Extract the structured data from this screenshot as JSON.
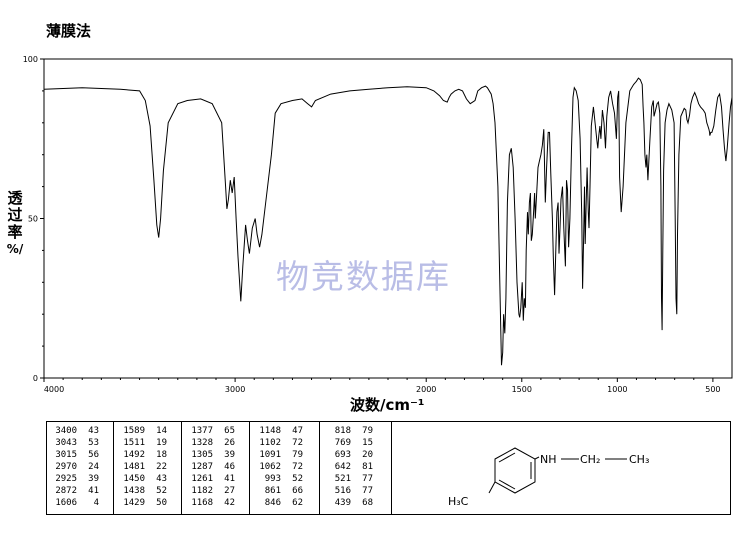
{
  "method_label": "薄膜法",
  "watermark": "物竞数据库",
  "chart_data": {
    "type": "line",
    "title": "",
    "ylabel_chars": [
      "透",
      "过",
      "率"
    ],
    "ylabel_unit": "%/",
    "xlabel": "波数/cm⁻¹",
    "xlim": [
      4000,
      400
    ],
    "ylim": [
      0,
      100
    ],
    "x_ticks": [
      4000,
      3000,
      2000,
      1500,
      1000,
      500
    ],
    "y_ticks": [
      0,
      50,
      100
    ],
    "grid": false,
    "series": [
      {
        "color": "#000000",
        "x": [
          4000,
          3800,
          3600,
          3500,
          3470,
          3445,
          3425,
          3410,
          3400,
          3390,
          3375,
          3350,
          3300,
          3250,
          3180,
          3120,
          3070,
          3050,
          3043,
          3035,
          3025,
          3015,
          3005,
          2995,
          2985,
          2970,
          2960,
          2945,
          2935,
          2925,
          2910,
          2895,
          2885,
          2872,
          2860,
          2840,
          2810,
          2790,
          2760,
          2700,
          2650,
          2620,
          2600,
          2580,
          2500,
          2400,
          2300,
          2200,
          2100,
          2000,
          1960,
          1930,
          1910,
          1890,
          1880,
          1870,
          1850,
          1830,
          1810,
          1790,
          1770,
          1745,
          1730,
          1710,
          1690,
          1680,
          1660,
          1650,
          1640,
          1625,
          1615,
          1606,
          1600,
          1595,
          1589,
          1583,
          1575,
          1565,
          1555,
          1545,
          1535,
          1525,
          1515,
          1511,
          1505,
          1498,
          1492,
          1487,
          1481,
          1477,
          1470,
          1466,
          1460,
          1455,
          1450,
          1445,
          1438,
          1433,
          1429,
          1422,
          1415,
          1408,
          1400,
          1392,
          1385,
          1377,
          1370,
          1362,
          1355,
          1348,
          1340,
          1335,
          1328,
          1322,
          1316,
          1310,
          1305,
          1300,
          1295,
          1287,
          1280,
          1272,
          1266,
          1261,
          1255,
          1248,
          1240,
          1232,
          1225,
          1215,
          1205,
          1195,
          1186,
          1182,
          1176,
          1172,
          1168,
          1163,
          1158,
          1152,
          1148,
          1143,
          1136,
          1125,
          1115,
          1108,
          1102,
          1097,
          1091,
          1086,
          1078,
          1070,
          1062,
          1055,
          1045,
          1035,
          1025,
          1015,
          1005,
          998,
          993,
          988,
          980,
          970,
          955,
          935,
          915,
          900,
          890,
          880,
          870,
          865,
          861,
          856,
          850,
          846,
          840,
          830,
          820,
          812,
          808,
          800,
          792,
          785,
          778,
          772,
          769,
          766,
          762,
          758,
          750,
          740,
          730,
          715,
          703,
          697,
          693,
          689,
          685,
          678,
          668,
          650,
          642,
          636,
          630,
          622,
          615,
          606,
          595,
          585,
          575,
          565,
          550,
          540,
          532,
          526,
          521,
          517,
          516,
          511,
          505,
          495,
          485,
          475,
          465,
          455,
          447,
          439,
          432,
          425,
          415,
          408,
          400
        ],
        "y": [
          90.5,
          91,
          90.5,
          90,
          87,
          79,
          62,
          48,
          44,
          50,
          65,
          80,
          86,
          87,
          87.5,
          86,
          80,
          60,
          53,
          56,
          62,
          58,
          63,
          50,
          38,
          24,
          35,
          48,
          43,
          39,
          47,
          50,
          45,
          41,
          45,
          55,
          70,
          83,
          86,
          87,
          87.5,
          86,
          85,
          87,
          89,
          90,
          90.5,
          91,
          91.3,
          91,
          90,
          88.5,
          87,
          86.5,
          88,
          89,
          90,
          90.5,
          90,
          87.5,
          86,
          87,
          90,
          91,
          91.5,
          91,
          89,
          86,
          80,
          60,
          30,
          4,
          8,
          20,
          14,
          25,
          55,
          70,
          72,
          66,
          50,
          30,
          20,
          19,
          22,
          30,
          18,
          25,
          22,
          40,
          52,
          45,
          55,
          58,
          43,
          45,
          52,
          58,
          50,
          58,
          66,
          68,
          70,
          73,
          78,
          55,
          66,
          77,
          77,
          64,
          50,
          38,
          26,
          40,
          52,
          55,
          39,
          47,
          56,
          60,
          47,
          35,
          62,
          59,
          41,
          50,
          72,
          88,
          91,
          90,
          87,
          75,
          50,
          28,
          45,
          60,
          42,
          55,
          66,
          52,
          47,
          60,
          79,
          85,
          79,
          75,
          72,
          76,
          79,
          75,
          84,
          80,
          72,
          82,
          88,
          90,
          86,
          83,
          75,
          88,
          90,
          63,
          52,
          60,
          80,
          90,
          92,
          93,
          94,
          93.5,
          92,
          85,
          80,
          70,
          66,
          70,
          62,
          74,
          85,
          87,
          82,
          84,
          86,
          86.5,
          83,
          60,
          25,
          15,
          40,
          65,
          80,
          84,
          86,
          84,
          80,
          50,
          25,
          20,
          45,
          70,
          82,
          84.5,
          84,
          81,
          80,
          82.5,
          86,
          88,
          89.5,
          88,
          86,
          85,
          84,
          83,
          80,
          79,
          78,
          77,
          76,
          77,
          77,
          79,
          84,
          88,
          89,
          85,
          78,
          72,
          68,
          72,
          80,
          85,
          88
        ]
      }
    ]
  },
  "peak_table": [
    {
      "wn": [
        "3400",
        "3043",
        "3015",
        "2970",
        "2925",
        "2872",
        "1606"
      ],
      "t": [
        "43",
        "53",
        "56",
        "24",
        "39",
        "41",
        "4"
      ]
    },
    {
      "wn": [
        "1589",
        "1511",
        "1492",
        "1481",
        "1450",
        "1438",
        "1429"
      ],
      "t": [
        "14",
        "19",
        "18",
        "22",
        "43",
        "52",
        "50"
      ]
    },
    {
      "wn": [
        "1377",
        "1328",
        "1305",
        "1287",
        "1261",
        "1182",
        "1168"
      ],
      "t": [
        "65",
        "26",
        "39",
        "46",
        "41",
        "27",
        "42"
      ]
    },
    {
      "wn": [
        "1148",
        "1102",
        "1091",
        "1062",
        "993",
        "861",
        "846"
      ],
      "t": [
        "47",
        "72",
        "79",
        "72",
        "52",
        "66",
        "62"
      ]
    },
    {
      "wn": [
        "818",
        "769",
        "693",
        "642",
        "521",
        "516",
        "439"
      ],
      "t": [
        "79",
        "15",
        "20",
        "81",
        "77",
        "77",
        "68"
      ]
    }
  ],
  "structure": {
    "nh_label": "NH",
    "ch2_label": "CH₂",
    "ch3_label": "CH₃",
    "h3c_label": "H₃C"
  }
}
